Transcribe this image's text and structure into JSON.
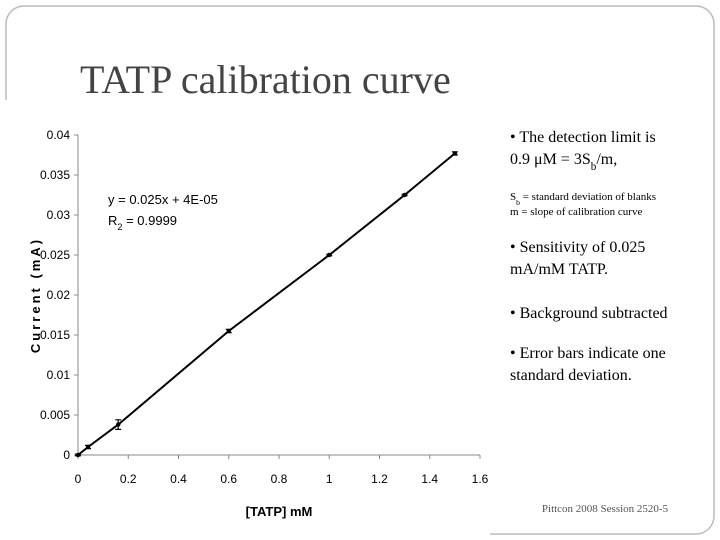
{
  "title": "TATP calibration curve",
  "chart_data": {
    "type": "scatter",
    "x": [
      0,
      0.04,
      0.16,
      0.6,
      1,
      1.3,
      1.5
    ],
    "series": [
      {
        "color": "#000000",
        "values": [
          0,
          0.001,
          0.0038,
          0.0155,
          0.025,
          0.0325,
          0.0377
        ],
        "errors": [
          0.0001,
          0.0002,
          0.0006,
          0.0002,
          0.0001,
          0.0001,
          0.0002
        ]
      }
    ],
    "xlim": [
      0,
      1.6
    ],
    "ylim": [
      0,
      0.04
    ],
    "xticks": [
      0,
      0.2,
      0.4,
      0.6,
      0.8,
      1,
      1.2,
      1.4,
      1.6
    ],
    "yticks": [
      0,
      0.005,
      0.01,
      0.015,
      0.02,
      0.025,
      0.03,
      0.035,
      0.04
    ],
    "x_label": "[TATP] mM",
    "y_label": "Current (mA)",
    "annotations": [
      [
        "y = 0.025x + 4E-05"
      ],
      [
        "R",
        "2",
        " = 0.9999"
      ]
    ]
  },
  "bullets": [
    [
      "• The detection limit is"
    ],
    [
      "0.9 μM = 3S",
      "b",
      "/m,"
    ],
    [
      "S",
      "b",
      " = standard deviation of  blanks"
    ],
    [
      "m = slope of calibration curve"
    ],
    [
      "• Sensitivity of 0.025"
    ],
    [
      "mA/mM TATP."
    ],
    [
      "• Background subtracted"
    ],
    [
      "• Error bars indicate one"
    ],
    [
      "standard deviation."
    ]
  ],
  "footer": "Pittcon 2008 Session 2520-5"
}
